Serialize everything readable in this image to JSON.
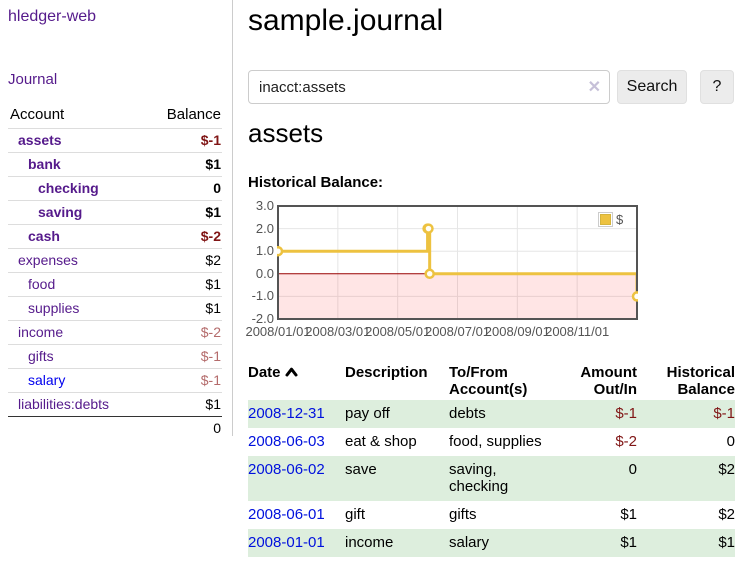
{
  "app": {
    "title": "hledger-web"
  },
  "sidebar": {
    "journal_link": "Journal",
    "table": {
      "headers": {
        "account": "Account",
        "balance": "Balance"
      },
      "rows": [
        {
          "name": "assets",
          "level": 1,
          "bold": true,
          "balance": "$-1",
          "neg": "strong",
          "link": "purple"
        },
        {
          "name": "bank",
          "level": 2,
          "bold": true,
          "balance": "$1",
          "neg": "none",
          "link": "purple"
        },
        {
          "name": "checking",
          "level": 3,
          "bold": true,
          "balance": "0",
          "neg": "none",
          "link": "purple"
        },
        {
          "name": "saving",
          "level": 3,
          "bold": true,
          "balance": "$1",
          "neg": "none",
          "link": "purple"
        },
        {
          "name": "cash",
          "level": 2,
          "bold": true,
          "balance": "$-2",
          "neg": "strong",
          "link": "purple"
        },
        {
          "name": "expenses",
          "level": 1,
          "bold": false,
          "balance": "$2",
          "neg": "none",
          "link": "purple"
        },
        {
          "name": "food",
          "level": 2,
          "bold": false,
          "balance": "$1",
          "neg": "none",
          "link": "purple"
        },
        {
          "name": "supplies",
          "level": 2,
          "bold": false,
          "balance": "$1",
          "neg": "none",
          "link": "purple"
        },
        {
          "name": "income",
          "level": 1,
          "bold": false,
          "balance": "$-2",
          "neg": "light",
          "link": "purple"
        },
        {
          "name": "gifts",
          "level": 2,
          "bold": false,
          "balance": "$-1",
          "neg": "light",
          "link": "purple"
        },
        {
          "name": "salary",
          "level": 2,
          "bold": false,
          "balance": "$-1",
          "neg": "light",
          "link": "blue"
        },
        {
          "name": "liabilities:debts",
          "level": 1,
          "bold": false,
          "balance": "$1",
          "neg": "none",
          "link": "purple"
        }
      ],
      "total": "0"
    }
  },
  "main": {
    "title": "sample.journal",
    "search": {
      "value": "inacct:assets",
      "clear_icon": "✕",
      "button": "Search",
      "help_button": "?"
    },
    "account_heading": "assets",
    "chart_label": "Historical Balance:"
  },
  "chart_data": {
    "type": "line",
    "step": true,
    "title": "Historical Balance:",
    "series": [
      {
        "name": "$",
        "color": "#edc240",
        "dates": [
          "2008-01-01",
          "2008-06-01",
          "2008-06-02",
          "2008-06-03",
          "2008-12-31"
        ],
        "x_months": [
          0,
          5.0,
          5.03,
          5.07,
          12
        ],
        "values": [
          1,
          2,
          2,
          0,
          -1
        ]
      }
    ],
    "x_ticks": [
      {
        "label": "2008/01/01",
        "month": 0
      },
      {
        "label": "2008/03/01",
        "month": 2
      },
      {
        "label": "2008/05/01",
        "month": 4
      },
      {
        "label": "2008/07/01",
        "month": 6
      },
      {
        "label": "2008/09/01",
        "month": 8
      },
      {
        "label": "2008/11/01",
        "month": 10
      }
    ],
    "y_ticks": [
      {
        "label": "3.0",
        "v": 3
      },
      {
        "label": "2.0",
        "v": 2
      },
      {
        "label": "1.0",
        "v": 1
      },
      {
        "label": "0.0",
        "v": 0
      },
      {
        "label": "-1.0",
        "v": -1
      },
      {
        "label": "-2.0",
        "v": -2
      }
    ],
    "ylim": [
      -2,
      3
    ],
    "xlim_months": [
      0,
      12
    ],
    "grid": true,
    "legend_position": "top-right"
  },
  "register_table": {
    "headers": {
      "date": "Date",
      "description": "Description",
      "tofrom": "To/From Account(s)",
      "amount": "Amount Out/In",
      "balance": "Historical Balance"
    },
    "sort": "date ascending",
    "rows": [
      {
        "date": "2008-12-31",
        "description": "pay off",
        "accounts": "debts",
        "amount": "$-1",
        "amount_neg": true,
        "balance": "$-1",
        "balance_neg": true
      },
      {
        "date": "2008-06-03",
        "description": "eat & shop",
        "accounts": "food, supplies",
        "amount": "$-2",
        "amount_neg": true,
        "balance": "0",
        "balance_neg": false
      },
      {
        "date": "2008-06-02",
        "description": "save",
        "accounts": "saving, checking",
        "amount": "0",
        "amount_neg": false,
        "balance": "$2",
        "balance_neg": false
      },
      {
        "date": "2008-06-01",
        "description": "gift",
        "accounts": "gifts",
        "amount": "$1",
        "amount_neg": false,
        "balance": "$2",
        "balance_neg": false
      },
      {
        "date": "2008-01-01",
        "description": "income",
        "accounts": "salary",
        "amount": "$1",
        "amount_neg": false,
        "balance": "$1",
        "balance_neg": false
      }
    ]
  },
  "colors": {
    "link_purple": "#551A8B",
    "link_blue": "#0000EE",
    "date_link_blue": "#0011dd",
    "negative_strong": "#801515",
    "negative_light": "#b46b6b",
    "row_stripe_green": "#ddeedd",
    "chart_series_gold": "#edc240",
    "chart_border": "#545454",
    "chart_grid": "#e6e6e6",
    "chart_negative_region": "rgba(255,0,0,0.10)",
    "chart_zero_line": "#990000",
    "button_bg": "#ececec"
  }
}
